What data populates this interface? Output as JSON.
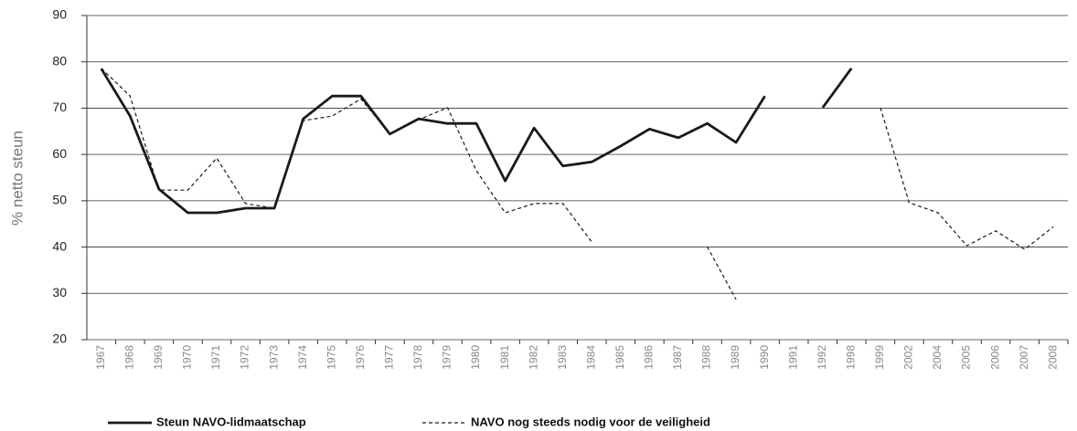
{
  "chart_data": {
    "type": "line",
    "y_label": "% netto steun",
    "categories": [
      "1967",
      "1968",
      "1969",
      "1970",
      "1971",
      "1972",
      "1973",
      "1974",
      "1975",
      "1976",
      "1977",
      "1978",
      "1979",
      "1980",
      "1981",
      "1982",
      "1983",
      "1984",
      "1985",
      "1986",
      "1987",
      "1988",
      "1989",
      "1990",
      "1991",
      "1992",
      "1998",
      "1999",
      "2002",
      "2004",
      "2005",
      "2006",
      "2007",
      "2008"
    ],
    "series": [
      {
        "name": "Steun NAVO-lidmaatschap",
        "color": "#1a1a1a",
        "linestyle": "solid",
        "values": [
          78.5,
          68.3,
          52.5,
          47.4,
          47.4,
          48.4,
          48.4,
          67.7,
          72.6,
          72.6,
          64.4,
          67.7,
          66.7,
          66.7,
          54.3,
          65.7,
          57.5,
          58.4,
          61.8,
          65.5,
          63.6,
          66.7,
          62.6,
          72.6,
          null,
          70.1,
          78.6,
          null,
          null,
          null,
          null,
          null,
          null,
          null
        ]
      },
      {
        "name": "NAVO nog steeds nodig voor de veiligheid",
        "color": "#1a1a1a",
        "linestyle": "dashed",
        "values": [
          78.6,
          72.6,
          52.3,
          52.3,
          59.2,
          49.4,
          48.4,
          67.3,
          68.3,
          72.0,
          64.4,
          67.5,
          70.1,
          56.5,
          47.4,
          49.4,
          49.4,
          41.1,
          null,
          null,
          null,
          40.1,
          28.7,
          null,
          null,
          null,
          null,
          70.1,
          49.6,
          47.4,
          40.3,
          43.5,
          39.5,
          44.4
        ]
      }
    ],
    "ylim": [
      20,
      90
    ],
    "yticks": [
      20,
      30,
      40,
      50,
      60,
      70,
      80,
      90
    ],
    "grid": true
  }
}
